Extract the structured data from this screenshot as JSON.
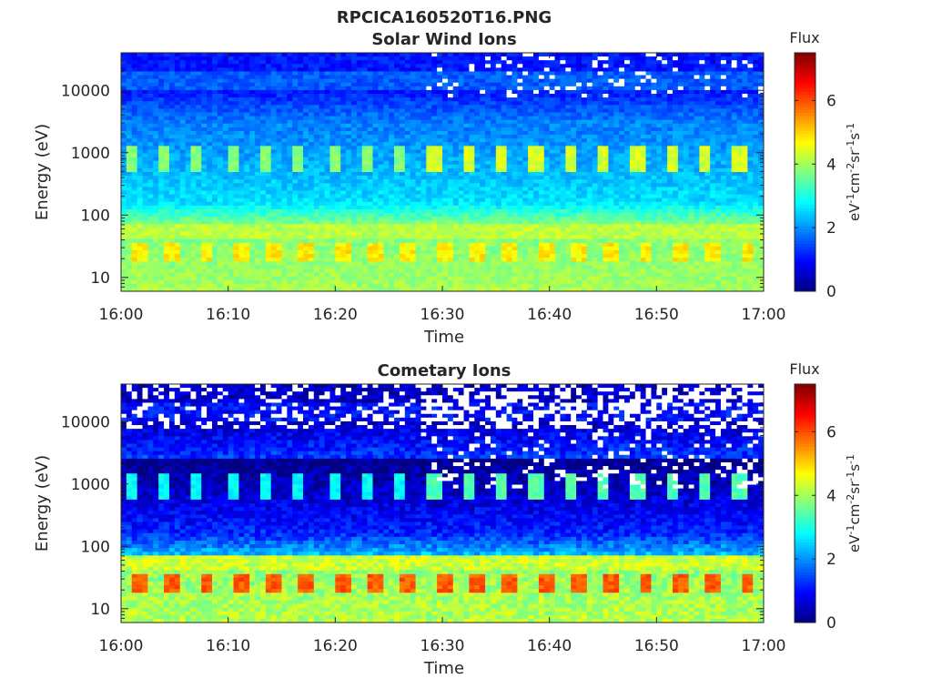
{
  "figure": {
    "title": "RPCICA160520T16.PNG"
  },
  "colormap": "jet",
  "chart_data": [
    {
      "type": "heatmap",
      "title": "Solar Wind Ions",
      "xlabel": "Time",
      "ylabel": "Energy (eV)",
      "x_ticks": [
        "16:00",
        "16:10",
        "16:20",
        "16:30",
        "16:40",
        "16:50",
        "17:00"
      ],
      "xlim": [
        "16:00",
        "17:00"
      ],
      "y_scale": "log",
      "y_ticks": [
        10,
        100,
        1000,
        10000
      ],
      "y_tick_labels": [
        "10",
        "100",
        "1000",
        "10000"
      ],
      "ylim": [
        6,
        40000
      ],
      "colorbar": {
        "label": "Flux",
        "unit": "eV-1cm-2sr-1s-1",
        "range": [
          0,
          7.5
        ],
        "ticks": [
          "0",
          "2",
          "4",
          "6"
        ]
      },
      "features": {
        "background_high_energy": 1.1,
        "background_mid_energy": 2.6,
        "low_energy_band_value": 4.2,
        "low_energy_peak_value": 4.8,
        "pulse_count": 19,
        "pulse_energy_ev": 25,
        "secondary_band_energy_ev": 800,
        "secondary_band_value": 3.8,
        "empty_bins_after": "16:28"
      }
    },
    {
      "type": "heatmap",
      "title": "Cometary Ions",
      "xlabel": "Time",
      "ylabel": "Energy (eV)",
      "x_ticks": [
        "16:00",
        "16:10",
        "16:20",
        "16:30",
        "16:40",
        "16:50",
        "17:00"
      ],
      "xlim": [
        "16:00",
        "17:00"
      ],
      "y_scale": "log",
      "y_ticks": [
        10,
        100,
        1000,
        10000
      ],
      "y_tick_labels": [
        "10",
        "100",
        "1000",
        "10000"
      ],
      "ylim": [
        6,
        40000
      ],
      "colorbar": {
        "label": "Flux",
        "unit": "eV-1cm-2sr-1s-1",
        "range": [
          0,
          7.5
        ],
        "ticks": [
          "0",
          "2",
          "4",
          "6"
        ]
      },
      "features": {
        "background_high_energy": 0.5,
        "background_mid_energy": 1.2,
        "low_energy_band_value": 4.3,
        "low_energy_peak_value": 5.9,
        "pulse_count": 19,
        "pulse_energy_ev": 25,
        "secondary_band_energy_ev": 900,
        "secondary_band_value": 2.8,
        "empty_bins_after": "16:28"
      }
    }
  ]
}
